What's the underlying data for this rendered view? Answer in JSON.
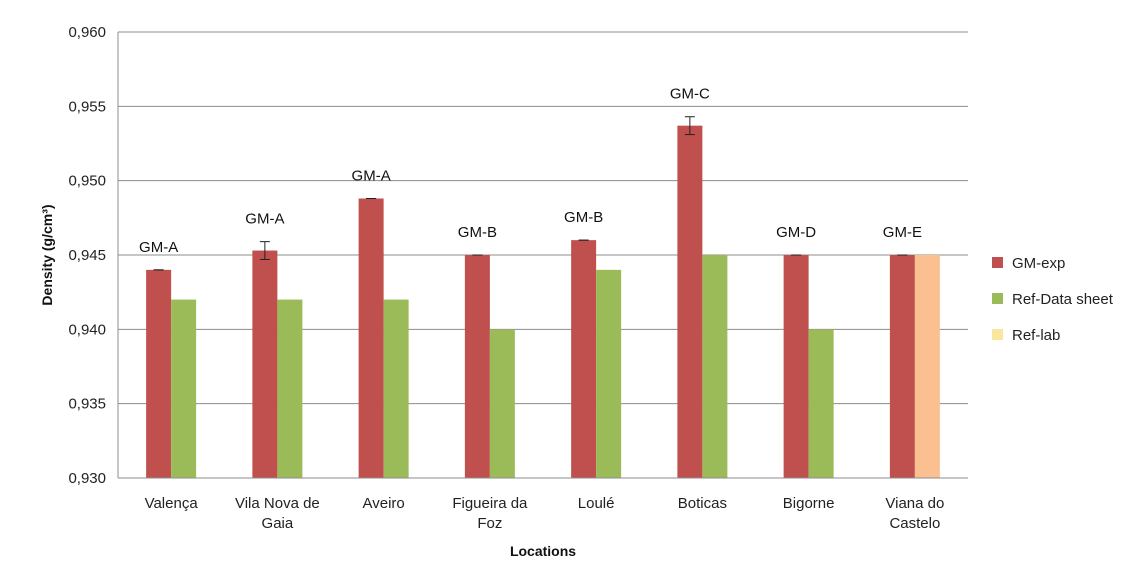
{
  "chart_data": {
    "type": "bar",
    "title": "",
    "xlabel": "Locations",
    "ylabel": "Density (g/cm³)",
    "ylim": [
      0.93,
      0.96
    ],
    "yticks": [
      0.93,
      0.935,
      0.94,
      0.945,
      0.95,
      0.955,
      0.96
    ],
    "ytick_labels": [
      "0,930",
      "0,935",
      "0,940",
      "0,945",
      "0,950",
      "0,955",
      "0,960"
    ],
    "grid": true,
    "legend_position": "right",
    "categories": [
      [
        "Valença"
      ],
      [
        "Vila Nova de",
        "Gaia"
      ],
      [
        "Aveiro"
      ],
      [
        "Figueira da",
        "Foz"
      ],
      [
        "Loulé"
      ],
      [
        "Boticas"
      ],
      [
        "Bigorne"
      ],
      [
        "Viana do",
        "Castelo"
      ]
    ],
    "bar_labels": [
      "GM-A",
      "GM-A",
      "GM-A",
      "GM-B",
      "GM-B",
      "GM-C",
      "GM-D",
      "GM-E"
    ],
    "series": [
      {
        "name": "GM-exp",
        "color": "#c0504d",
        "values": [
          0.944,
          0.9453,
          0.9488,
          0.945,
          0.946,
          0.9537,
          0.945,
          0.945
        ],
        "errors": [
          0.0,
          0.0006,
          0.0,
          0.0,
          0.0,
          0.0006,
          0.0,
          0.0
        ]
      },
      {
        "name": "Ref-Data sheet",
        "color": "#9bbb59",
        "values": [
          0.942,
          0.942,
          0.942,
          0.94,
          0.944,
          0.945,
          0.94,
          null
        ]
      },
      {
        "name": "Ref-lab",
        "color": "#fac090",
        "legend_color": "#f9e79f",
        "values": [
          null,
          null,
          null,
          null,
          null,
          null,
          null,
          0.945
        ]
      }
    ]
  }
}
